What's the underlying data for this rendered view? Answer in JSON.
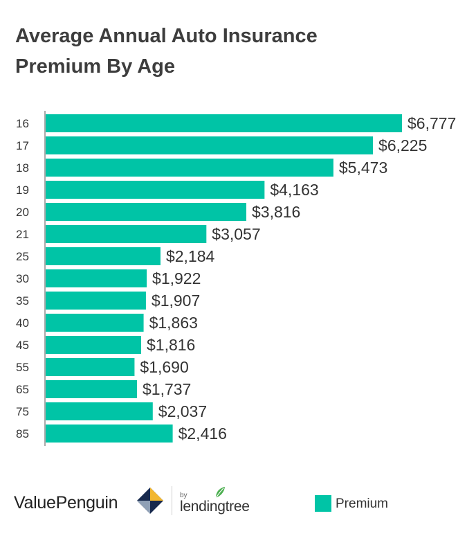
{
  "chart_data": {
    "type": "bar",
    "orientation": "horizontal",
    "title": "Average Annual Auto Insurance Premium By Age",
    "title_lines": [
      "Average Annual Auto Insurance",
      "Premium By Age"
    ],
    "categories": [
      "16",
      "17",
      "18",
      "19",
      "20",
      "21",
      "25",
      "30",
      "35",
      "40",
      "45",
      "55",
      "65",
      "75",
      "85"
    ],
    "series": [
      {
        "name": "Premium",
        "values": [
          6777,
          6225,
          5473,
          4163,
          3816,
          3057,
          2184,
          1922,
          1907,
          1863,
          1816,
          1690,
          1737,
          2037,
          2416
        ],
        "labels": [
          "$6,777",
          "$6,225",
          "$5,473",
          "$4,163",
          "$3,816",
          "$3,057",
          "$2,184",
          "$1,922",
          "$1,907",
          "$1,863",
          "$1,816",
          "$1,690",
          "$1,737",
          "$2,037",
          "$2,416"
        ]
      }
    ],
    "xlim": [
      0,
      6777
    ],
    "grid": false,
    "legend_position": "bottom-right",
    "bar_color": "#00c4a6"
  },
  "footer": {
    "brand": "ValuePenguin",
    "by": "by",
    "partner": "lendingtree"
  },
  "legend": {
    "label": "Premium"
  }
}
